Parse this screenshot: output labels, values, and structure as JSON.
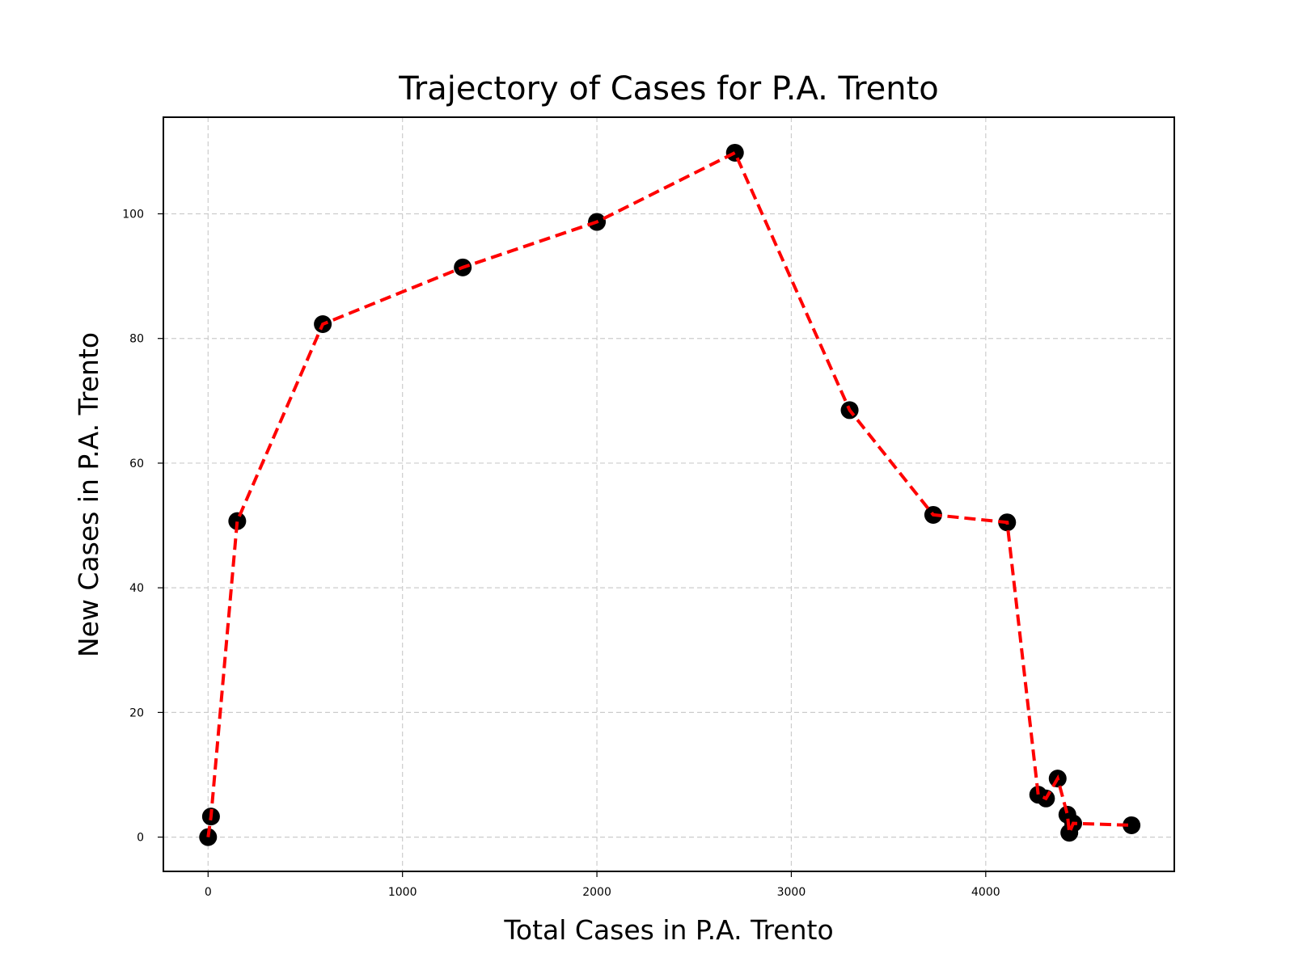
{
  "chart_data": {
    "type": "line",
    "title": "Trajectory of Cases for P.A. Trento",
    "xlabel": "Total Cases in P.A. Trento",
    "ylabel": "New Cases in P.A. Trento",
    "xlim": [
      -230,
      4970
    ],
    "ylim": [
      -5.5,
      115.5
    ],
    "x_ticks": [
      0,
      1000,
      2000,
      3000,
      4000
    ],
    "y_ticks": [
      0,
      20,
      40,
      60,
      80,
      100
    ],
    "x_tick_labels": [
      "0",
      "1000",
      "2000",
      "3000",
      "4000"
    ],
    "y_tick_labels": [
      "0",
      "20",
      "40",
      "60",
      "80",
      "100"
    ],
    "grid": true,
    "series": [
      {
        "line_style": "dashed",
        "line_color": "#ff0000",
        "marker_color": "#000000",
        "points": [
          {
            "x": 0,
            "y": 0
          },
          {
            "x": 15,
            "y": 3.3
          },
          {
            "x": 150,
            "y": 50.7
          },
          {
            "x": 590,
            "y": 82.3
          },
          {
            "x": 1310,
            "y": 91.4
          },
          {
            "x": 2000,
            "y": 98.7
          },
          {
            "x": 2710,
            "y": 109.8
          },
          {
            "x": 3300,
            "y": 68.5
          },
          {
            "x": 3730,
            "y": 51.7
          },
          {
            "x": 4110,
            "y": 50.5
          },
          {
            "x": 4270,
            "y": 6.8
          },
          {
            "x": 4310,
            "y": 6.2
          },
          {
            "x": 4370,
            "y": 9.4
          },
          {
            "x": 4420,
            "y": 3.6
          },
          {
            "x": 4430,
            "y": 0.7
          },
          {
            "x": 4450,
            "y": 2.2
          },
          {
            "x": 4750,
            "y": 1.9
          }
        ]
      }
    ]
  }
}
